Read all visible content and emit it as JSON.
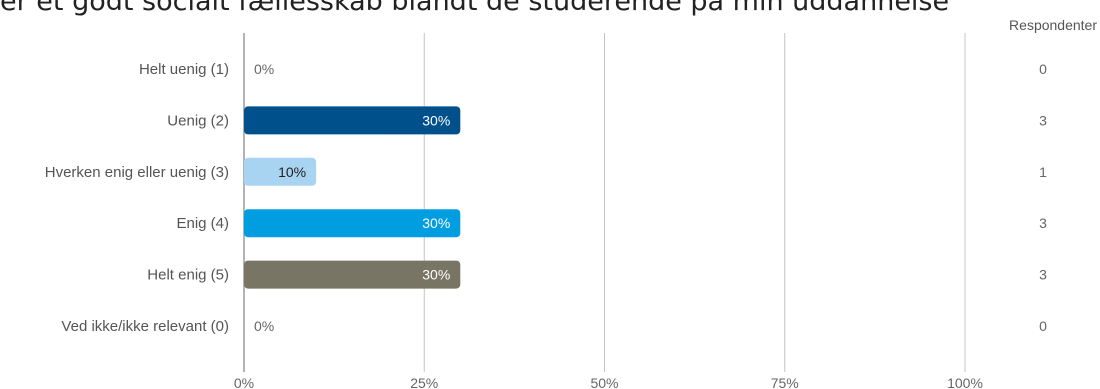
{
  "chart_data": {
    "type": "bar",
    "orientation": "horizontal",
    "title": "er et godt socialt fællesskab blandt de studerende på min uddannelse",
    "categories": [
      "Helt uenig (1)",
      "Uenig (2)",
      "Hverken enig eller uenig (3)",
      "Enig (4)",
      "Helt enig (5)",
      "Ved ikke/ikke relevant (0)"
    ],
    "values": [
      0,
      30,
      10,
      30,
      30,
      0
    ],
    "value_labels": [
      "0%",
      "30%",
      "10%",
      "30%",
      "30%",
      "0%"
    ],
    "counts": [
      0,
      3,
      1,
      3,
      3,
      0
    ],
    "counts_header": "Respondenter",
    "colors": [
      "#cccccc",
      "#00508c",
      "#a8d4f2",
      "#009ee0",
      "#797564",
      "#cccccc"
    ],
    "label_colors": [
      "#666666",
      "#ffffff",
      "#222222",
      "#ffffff",
      "#ffffff",
      "#666666"
    ],
    "xlim": [
      0,
      100
    ],
    "xticks": [
      0,
      25,
      50,
      75,
      100
    ],
    "xtick_labels": [
      "0%",
      "25%",
      "50%",
      "75%",
      "100%"
    ],
    "grid": true
  }
}
